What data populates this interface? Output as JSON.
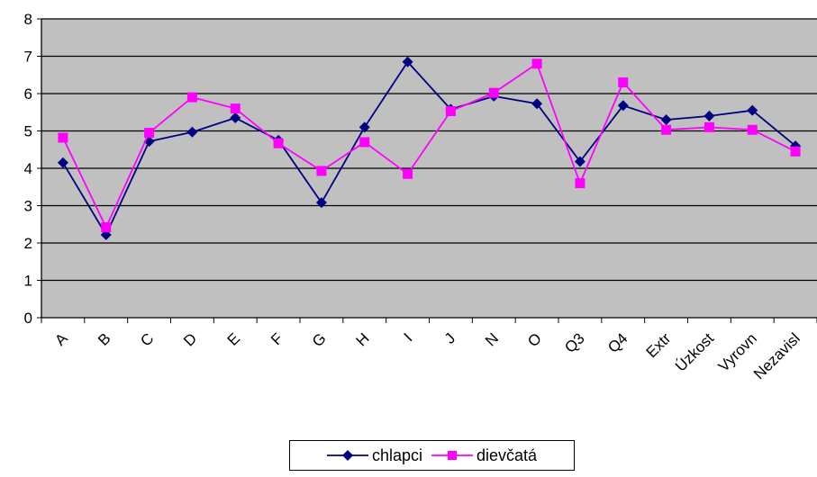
{
  "chart_data": {
    "type": "line",
    "categories": [
      "A",
      "B",
      "C",
      "D",
      "E",
      "F",
      "G",
      "H",
      "I",
      "J",
      "N",
      "O",
      "Q3",
      "Q4",
      "Extr",
      "Úzkost",
      "Vyrovn",
      "Nezavisl"
    ],
    "yticks": [
      "0",
      "1",
      "2",
      "3",
      "4",
      "5",
      "6",
      "7",
      "8"
    ],
    "ylim": [
      0,
      8
    ],
    "grid": true,
    "plot_background": "#c0c0c0",
    "legend_position": "bottom",
    "series": [
      {
        "name": "chlapci",
        "color": "#000080",
        "marker": "diamond",
        "values": [
          4.15,
          2.22,
          4.72,
          4.97,
          5.35,
          4.75,
          3.08,
          5.1,
          6.85,
          5.58,
          5.93,
          5.73,
          4.18,
          5.68,
          5.3,
          5.4,
          5.55,
          4.6
        ]
      },
      {
        "name": "dievčatá",
        "color": "#ff00ff",
        "marker": "square",
        "values": [
          4.82,
          2.42,
          4.95,
          5.9,
          5.6,
          4.67,
          3.93,
          4.7,
          3.85,
          5.53,
          6.02,
          6.8,
          3.6,
          6.3,
          5.03,
          5.1,
          5.03,
          4.45
        ]
      }
    ]
  }
}
